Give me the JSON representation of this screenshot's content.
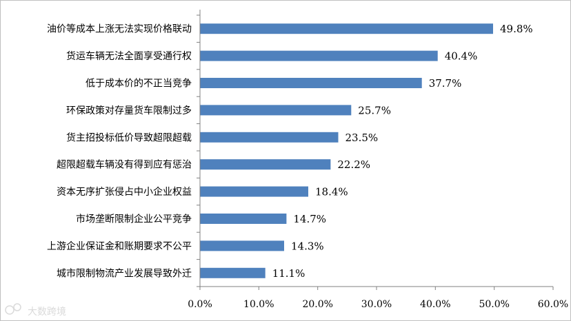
{
  "chart_data": {
    "type": "bar",
    "orientation": "horizontal",
    "categories": [
      "油价等成本上涨无法实现价格联动",
      "货运车辆无法全面享受通行权",
      "低于成本价的不正当竞争",
      "环保政策对存量货车限制过多",
      "货主招投标低价导致超限超载",
      "超限超载车辆没有得到应有惩治",
      "资本无序扩张侵占中小企业权益",
      "市场垄断限制企业公平竞争",
      "上游企业保证金和账期要求不公平",
      "城市限制物流产业发展导致外迁"
    ],
    "values": [
      49.8,
      40.4,
      37.7,
      25.7,
      23.5,
      22.2,
      18.4,
      14.7,
      14.3,
      11.1
    ],
    "value_labels": [
      "49.8%",
      "40.4%",
      "37.7%",
      "25.7%",
      "23.5%",
      "22.2%",
      "18.4%",
      "14.7%",
      "14.3%",
      "11.1%"
    ],
    "xlim": [
      0,
      60
    ],
    "x_ticks": [
      "0.0%",
      "10.0%",
      "20.0%",
      "30.0%",
      "40.0%",
      "50.0%",
      "60.0%"
    ],
    "bar_color": "#4f81bd",
    "grid": false,
    "title": "",
    "xlabel": "",
    "ylabel": ""
  },
  "watermark": {
    "text": "大数跨境",
    "icon": "logo-icon"
  }
}
